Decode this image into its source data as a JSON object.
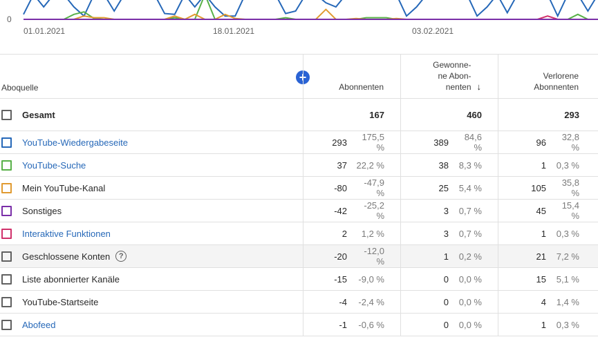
{
  "chart": {
    "y_tick": "0",
    "x_ticks": [
      "01.01.2021",
      "18.01.2021",
      "03.02.2021"
    ],
    "lines": [
      {
        "color": "#2668b8",
        "values": [
          12,
          60,
          30,
          60,
          60,
          30,
          8,
          60,
          60,
          20,
          60,
          55,
          60,
          60,
          14,
          12,
          60,
          30,
          60,
          30,
          8,
          8,
          60,
          60,
          60,
          60,
          14,
          20,
          60,
          60,
          40,
          30,
          60,
          60,
          60,
          60,
          60,
          60,
          8,
          30,
          60,
          60,
          60,
          60,
          60,
          8,
          30,
          60,
          16,
          60,
          60,
          60,
          60,
          8,
          60,
          60,
          20,
          60
        ]
      },
      {
        "color": "#58b048",
        "values": [
          0,
          0,
          0,
          0,
          0,
          12,
          18,
          2,
          0,
          0,
          0,
          0,
          0,
          0,
          0,
          4,
          0,
          0,
          60,
          0,
          0,
          0,
          0,
          0,
          0,
          0,
          4,
          0,
          0,
          0,
          0,
          0,
          0,
          0,
          4,
          4,
          4,
          0,
          0,
          0,
          0,
          0,
          0,
          0,
          0,
          0,
          0,
          0,
          0,
          0,
          0,
          0,
          0,
          0,
          0,
          12,
          0,
          0
        ]
      },
      {
        "color": "#e09a30",
        "values": [
          0,
          0,
          0,
          0,
          0,
          0,
          8,
          4,
          4,
          0,
          0,
          0,
          0,
          0,
          0,
          8,
          0,
          12,
          0,
          0,
          12,
          2,
          0,
          0,
          0,
          0,
          0,
          0,
          0,
          0,
          24,
          0,
          0,
          2,
          0,
          0,
          0,
          2,
          0,
          0,
          0,
          0,
          0,
          0,
          0,
          0,
          0,
          0,
          0,
          0,
          0,
          0,
          0,
          0,
          0,
          0,
          0,
          0
        ]
      },
      {
        "color": "#d0306a",
        "values": [
          0,
          0,
          0,
          0,
          0,
          0,
          0,
          0,
          0,
          0,
          0,
          0,
          0,
          0,
          0,
          0,
          0,
          0,
          0,
          0,
          0,
          0,
          0,
          0,
          0,
          0,
          0,
          0,
          0,
          0,
          0,
          0,
          0,
          0,
          0,
          0,
          0,
          0,
          0,
          0,
          0,
          0,
          0,
          0,
          0,
          0,
          0,
          0,
          0,
          0,
          0,
          0,
          8,
          0,
          0,
          0,
          0,
          0
        ]
      },
      {
        "color": "#7a2ea8",
        "values": [
          0,
          0,
          0,
          0,
          0,
          0,
          0,
          0,
          0,
          0,
          0,
          0,
          0,
          0,
          0,
          0,
          0,
          0,
          0,
          0,
          0,
          0,
          0,
          0,
          0,
          0,
          0,
          0,
          0,
          0,
          0,
          0,
          0,
          0,
          0,
          0,
          0,
          0,
          0,
          0,
          0,
          0,
          0,
          0,
          0,
          0,
          0,
          0,
          0,
          0,
          0,
          0,
          0,
          0,
          0,
          0,
          0,
          0
        ]
      }
    ]
  },
  "header": {
    "source": "Aboquelle",
    "col1": "Abonnenten",
    "col2_line1": "Gewonne-",
    "col2_line2": "ne Abon-",
    "col2_line3": "nenten",
    "col3_line1": "Verlorene",
    "col3_line2": "Abonnenten",
    "add_icon": "plus-icon",
    "sort_icon": "arrow-down-icon"
  },
  "total": {
    "label": "Gesamt",
    "abonnenten": "167",
    "gewonnen": "460",
    "verloren": "293"
  },
  "rows": [
    {
      "label": "YouTube-Wiedergabeseite",
      "link": true,
      "color": "#2668b8",
      "a": "293",
      "ap": "175,5 %",
      "g": "389",
      "gp": "84,6 %",
      "v": "96",
      "vp": "32,8 %"
    },
    {
      "label": "YouTube-Suche",
      "link": true,
      "color": "#58b048",
      "a": "37",
      "ap": "22,2 %",
      "g": "38",
      "gp": "8,3 %",
      "v": "1",
      "vp": "0,3 %"
    },
    {
      "label": "Mein YouTube-Kanal",
      "link": false,
      "color": "#e09a30",
      "a": "-80",
      "ap": "-47,9 %",
      "g": "25",
      "gp": "5,4 %",
      "v": "105",
      "vp": "35,8 %"
    },
    {
      "label": "Sonstiges",
      "link": false,
      "color": "#7a2ea8",
      "a": "-42",
      "ap": "-25,2 %",
      "g": "3",
      "gp": "0,7 %",
      "v": "45",
      "vp": "15,4 %"
    },
    {
      "label": "Interaktive Funktionen",
      "link": true,
      "color": "#d0306a",
      "a": "2",
      "ap": "1,2 %",
      "g": "3",
      "gp": "0,7 %",
      "v": "1",
      "vp": "0,3 %"
    },
    {
      "label": "Geschlossene Konten",
      "link": false,
      "color": "#606060",
      "help": true,
      "highlight": true,
      "a": "-20",
      "ap": "-12,0 %",
      "g": "1",
      "gp": "0,2 %",
      "v": "21",
      "vp": "7,2 %"
    },
    {
      "label": "Liste abonnierter Kanäle",
      "link": false,
      "color": "#606060",
      "a": "-15",
      "ap": "-9,0 %",
      "g": "0",
      "gp": "0,0 %",
      "v": "15",
      "vp": "5,1 %"
    },
    {
      "label": "YouTube-Startseite",
      "link": false,
      "color": "#606060",
      "a": "-4",
      "ap": "-2,4 %",
      "g": "0",
      "gp": "0,0 %",
      "v": "4",
      "vp": "1,4 %"
    },
    {
      "label": "Abofeed",
      "link": true,
      "color": "#606060",
      "a": "-1",
      "ap": "-0,6 %",
      "g": "0",
      "gp": "0,0 %",
      "v": "1",
      "vp": "0,3 %"
    }
  ]
}
